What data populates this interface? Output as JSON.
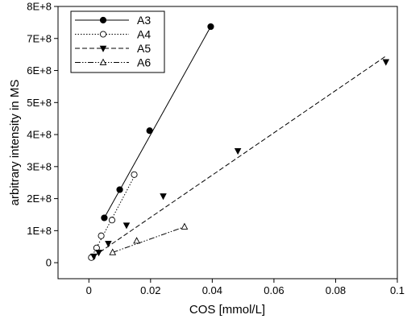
{
  "chart_data": {
    "type": "scatter",
    "xlabel": "COS [mmol/L]",
    "ylabel": "arbitrary intensity in MS",
    "xlim": [
      -0.01,
      0.1
    ],
    "ylim": [
      -50000000,
      800000000
    ],
    "x_ticks": [
      0,
      0.02,
      0.04,
      0.06,
      0.08,
      0.1
    ],
    "x_tick_labels": [
      "0",
      "0.02",
      "0.04",
      "0.06",
      "0.08",
      "0.1"
    ],
    "y_ticks": [
      0,
      100000000,
      200000000,
      300000000,
      400000000,
      500000000,
      600000000,
      700000000,
      800000000
    ],
    "y_tick_labels": [
      "0",
      "1E+8",
      "2E+8",
      "3E+8",
      "4E+8",
      "5E+8",
      "6E+8",
      "7E+8",
      "8E+8"
    ],
    "grid": false,
    "legend_position": "top-left",
    "series": [
      {
        "name": "A3",
        "marker": "circle-filled",
        "line_style": "solid",
        "x": [
          0.0011,
          0.005,
          0.01,
          0.0197,
          0.0395
        ],
        "y": [
          18000000,
          140000000,
          228000000,
          412000000,
          737000000
        ],
        "fit": [
          [
            0.005,
            140000000
          ],
          [
            0.0395,
            737000000
          ]
        ]
      },
      {
        "name": "A4",
        "marker": "circle-open",
        "line_style": "dotted",
        "x": [
          0.0008,
          0.0025,
          0.004,
          0.0075,
          0.0147
        ],
        "y": [
          16000000,
          46000000,
          84000000,
          133000000,
          275000000
        ],
        "fit": [
          [
            0.0008,
            16000000
          ],
          [
            0.0152,
            278000000
          ]
        ]
      },
      {
        "name": "A5",
        "marker": "triangle-down-filled",
        "line_style": "dashed",
        "x": [
          0.0016,
          0.0032,
          0.0063,
          0.0122,
          0.0241,
          0.0483,
          0.0963
        ],
        "y": [
          20000000,
          32000000,
          60000000,
          117000000,
          208000000,
          349000000,
          627000000
        ],
        "fit": [
          [
            0.0016,
            20000000
          ],
          [
            0.0963,
            645000000
          ]
        ]
      },
      {
        "name": "A6",
        "marker": "triangle-up-open",
        "line_style": "dash-dot-dot",
        "x": [
          0.0077,
          0.0155,
          0.031
        ],
        "y": [
          32000000,
          68000000,
          112000000
        ],
        "fit": [
          [
            0.0077,
            32000000
          ],
          [
            0.031,
            112000000
          ]
        ]
      }
    ]
  }
}
